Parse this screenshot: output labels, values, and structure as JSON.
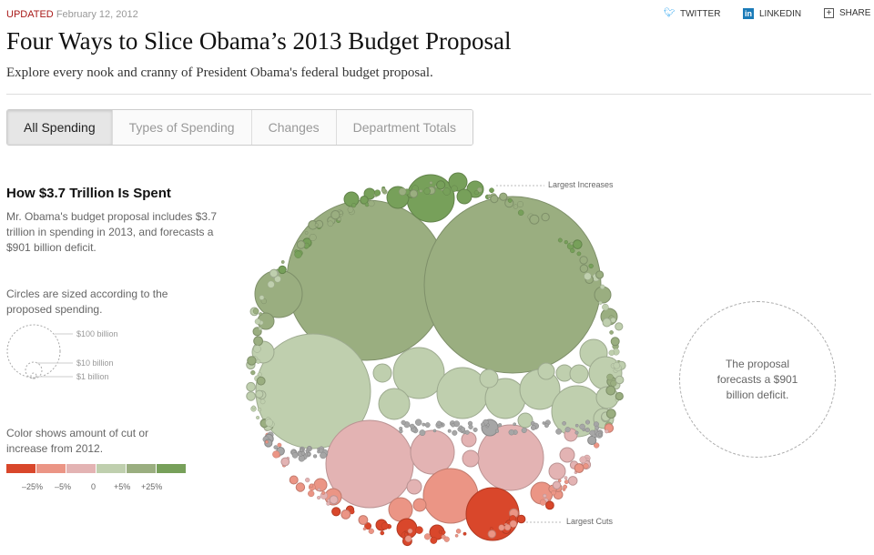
{
  "header": {
    "updated_label": "UPDATED",
    "date": "February 12, 2012",
    "social": {
      "twitter": "TWITTER",
      "linkedin": "LINKEDIN",
      "share": "SHARE"
    },
    "title": "Four Ways to Slice Obama’s 2013 Budget Proposal",
    "subtitle": "Explore every nook and cranny of President Obama's federal budget proposal."
  },
  "tabs": [
    {
      "label": "All Spending",
      "active": true
    },
    {
      "label": "Types of Spending"
    },
    {
      "label": "Changes"
    },
    {
      "label": "Department Totals"
    }
  ],
  "sidebar": {
    "heading": "How $3.7 Trillion Is Spent",
    "intro": "Mr. Obama's budget proposal includes $3.7 trillion in spending in 2013, and forecasts a $901 billion deficit.",
    "size_note": "Circles are sized according to the proposed spending.",
    "size_legend": [
      "$100 billion",
      "$10 billion",
      "$1 billion"
    ],
    "color_note": "Color shows amount of cut or increase from 2012.",
    "color_scale": [
      "#d9472b",
      "#eb9585",
      "#e3b3b3",
      "#bfcfae",
      "#9aae80",
      "#77a05a"
    ],
    "color_ticks": [
      "–25%",
      "–5%",
      "0",
      "+5%",
      "+25%"
    ]
  },
  "chart": {
    "largest_increases": "Largest Increases",
    "largest_cuts": "Largest Cuts",
    "deficit_text": "The proposal forecasts a $901 billion deficit.",
    "gray": "#a6a6a6"
  }
}
